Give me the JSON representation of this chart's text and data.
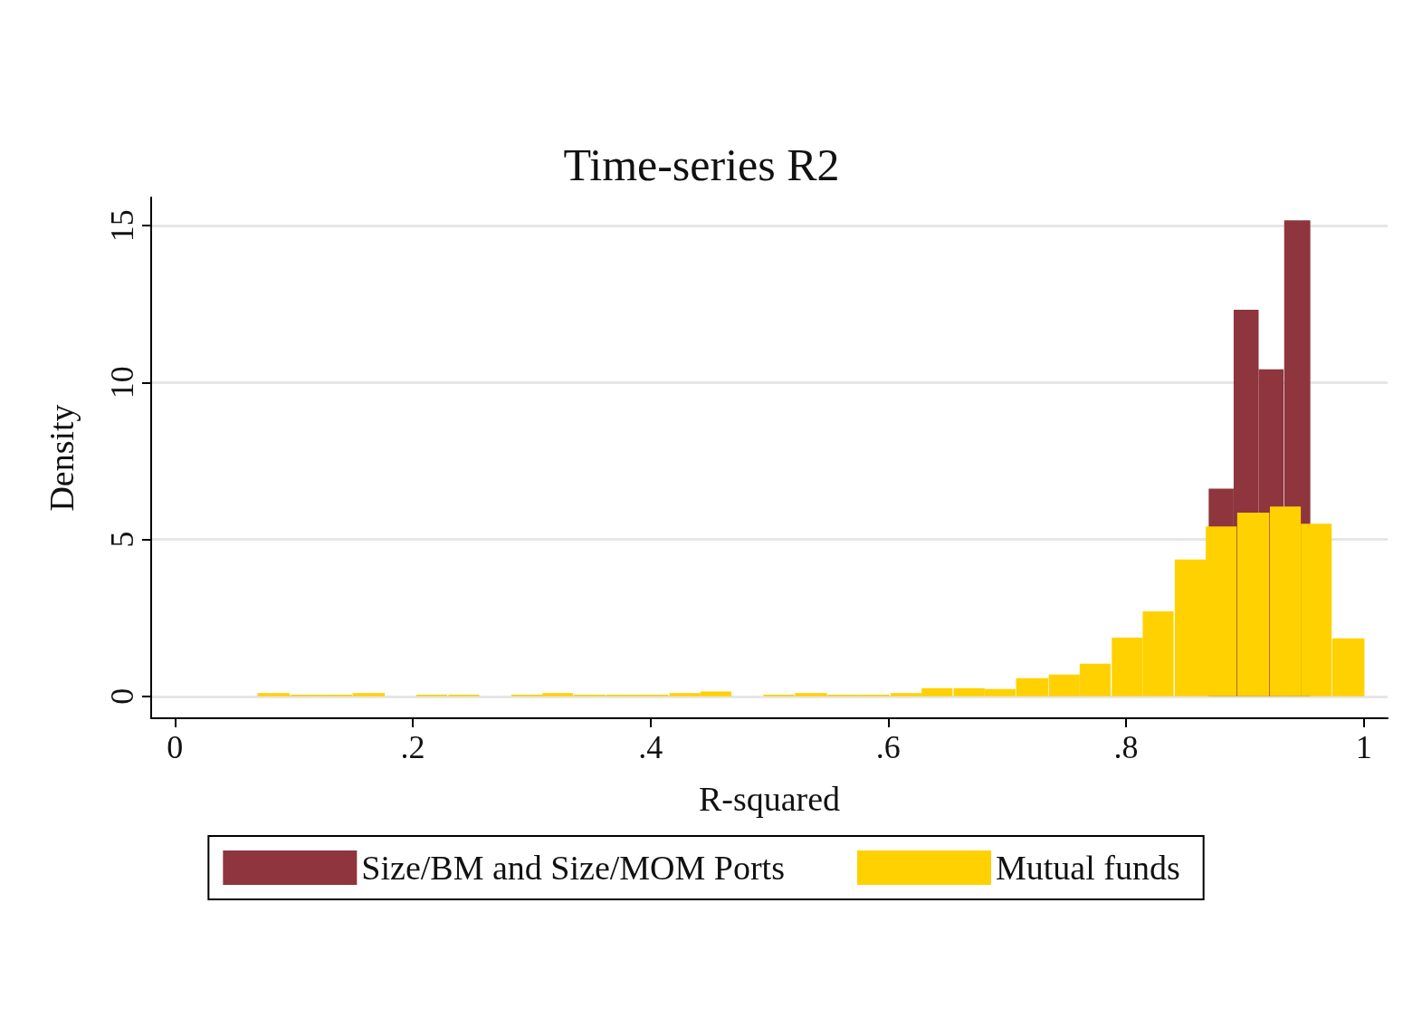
{
  "chart_data": {
    "type": "bar",
    "title": "Time-series R2",
    "xlabel": "R-squared",
    "ylabel": "Density",
    "xlim": [
      -0.02,
      1.02
    ],
    "xticks": [
      0,
      {
        "value": 0.2,
        "label": ".2"
      },
      {
        "value": 0.4,
        "label": ".4"
      },
      {
        "value": 0.6,
        "label": ".6"
      },
      {
        "value": 0.8,
        "label": ".8"
      },
      1
    ],
    "ylim": [
      -0.7,
      15.9
    ],
    "yticks": [
      0,
      5,
      10,
      15
    ],
    "grid": "y",
    "legend": "bottom",
    "series": [
      {
        "name": "Size/BM and Size/MOM Ports",
        "color": "#8e353d",
        "x": [
          0.88,
          0.901,
          0.922,
          0.944
        ],
        "values": [
          6.62,
          12.32,
          10.42,
          15.17
        ]
      },
      {
        "name": "Mutual funds",
        "color": "#ffd100",
        "x": [
          0.083,
          0.11,
          0.136,
          0.163,
          0.19,
          0.216,
          0.243,
          0.269,
          0.296,
          0.322,
          0.349,
          0.376,
          0.402,
          0.429,
          0.455,
          0.482,
          0.508,
          0.535,
          0.562,
          0.588,
          0.615,
          0.641,
          0.668,
          0.694,
          0.721,
          0.748,
          0.774,
          0.801,
          0.827,
          0.854,
          0.88,
          0.907,
          0.934,
          0.96,
          0.987
        ],
        "values": [
          0.1,
          0.05,
          0.05,
          0.1,
          0,
          0.05,
          0.05,
          0,
          0.05,
          0.1,
          0.05,
          0.05,
          0.05,
          0.1,
          0.15,
          0,
          0.05,
          0.1,
          0.05,
          0.05,
          0.1,
          0.26,
          0.26,
          0.23,
          0.58,
          0.69,
          1.04,
          1.87,
          2.71,
          4.36,
          5.41,
          5.85,
          6.05,
          5.5,
          1.85
        ]
      }
    ]
  }
}
